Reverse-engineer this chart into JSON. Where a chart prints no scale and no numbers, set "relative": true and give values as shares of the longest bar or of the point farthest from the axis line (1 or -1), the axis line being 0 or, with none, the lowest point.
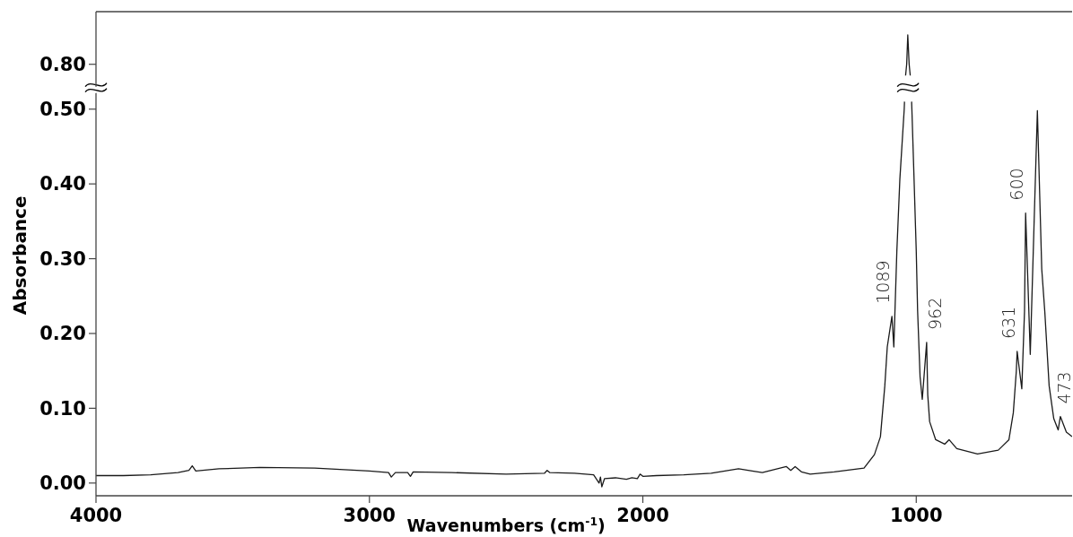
{
  "chart_data": [
    {
      "type": "line",
      "xlim": [
        4000,
        430
      ],
      "relative": true,
      "x": [
        1039,
        1035,
        1031,
        1026,
        1022
      ],
      "series": [
        {
          "color": "#1a1a1a",
          "values": [
            0,
            0.28,
            1,
            0.28,
            0
          ]
        }
      ],
      "annotations": [
        "0.80"
      ]
    },
    {
      "type": "line",
      "xlabel": "Wavenumbers (cm$^{-1}$)",
      "ylabel": "Absorbance",
      "xlim": [
        4000,
        430
      ],
      "xticks": [
        4000,
        3000,
        2000,
        1000
      ],
      "ylim": [
        -0.017,
        0.53
      ],
      "yticks": [
        {
          "value": 0,
          "label": "0.00"
        },
        {
          "value": 0.1,
          "label": "0.10"
        },
        {
          "value": 0.2,
          "label": "0.20"
        },
        {
          "value": 0.3,
          "label": "0.30"
        },
        {
          "value": 0.4,
          "label": "0.40"
        },
        {
          "value": 0.5,
          "label": "0.50"
        }
      ],
      "x": [
        4000,
        3900,
        3800,
        3700,
        3660,
        3648,
        3635,
        3550,
        3400,
        3200,
        3000,
        2930,
        2920,
        2905,
        2860,
        2850,
        2840,
        2700,
        2500,
        2360,
        2350,
        2340,
        2250,
        2180,
        2160,
        2155,
        2150,
        2140,
        2100,
        2060,
        2040,
        2020,
        2010,
        2000,
        1950,
        1850,
        1750,
        1700,
        1650,
        1600,
        1563,
        1475,
        1459,
        1443,
        1420,
        1388,
        1300,
        1191,
        1153,
        1131,
        1115,
        1106,
        1089,
        1082,
        1071,
        1060,
        1044,
        1043,
        1030,
        1017,
        1016,
        1008,
        1000,
        995,
        986,
        978,
        962,
        958,
        951,
        929,
        896,
        880,
        852,
        776,
        700,
        661,
        645,
        634,
        631,
        614,
        604,
        600,
        583,
        557,
        541,
        530,
        514,
        497,
        481,
        473,
        451,
        430
      ],
      "series": [
        {
          "color": "#1a1a1a",
          "values": [
            0.01,
            0.01,
            0.011,
            0.014,
            0.017,
            0.023,
            0.016,
            0.019,
            0.021,
            0.02,
            0.016,
            0.014,
            0.008,
            0.014,
            0.014,
            0.009,
            0.015,
            0.014,
            0.012,
            0.013,
            0.017,
            0.014,
            0.013,
            0.011,
            0.0,
            0.008,
            -0.005,
            0.006,
            0.007,
            0.005,
            0.007,
            0.006,
            0.012,
            0.009,
            0.01,
            0.011,
            0.013,
            0.016,
            0.019,
            0.016,
            0.014,
            0.022,
            0.017,
            0.022,
            0.015,
            0.012,
            0.015,
            0.02,
            0.038,
            0.062,
            0.13,
            0.182,
            0.223,
            0.182,
            0.31,
            0.406,
            0.5,
            0.51,
            null,
            0.51,
            0.5,
            0.406,
            0.31,
            0.23,
            0.142,
            0.112,
            0.188,
            0.118,
            0.082,
            0.058,
            0.052,
            0.058,
            0.046,
            0.039,
            0.044,
            0.058,
            0.094,
            0.15,
            0.176,
            0.126,
            0.23,
            0.361,
            0.172,
            0.498,
            0.286,
            0.23,
            0.13,
            0.086,
            0.071,
            0.089,
            0.068,
            0.062
          ]
        }
      ],
      "annotations": [
        {
          "text": "1089",
          "x": 1089,
          "y": 0.223
        },
        {
          "text": "962",
          "x": 962,
          "y": 0.188
        },
        {
          "text": "631",
          "x": 631,
          "y": 0.176
        },
        {
          "text": "600",
          "x": 600,
          "y": 0.361
        },
        {
          "text": "473",
          "x": 473,
          "y": 0.089
        }
      ]
    }
  ]
}
